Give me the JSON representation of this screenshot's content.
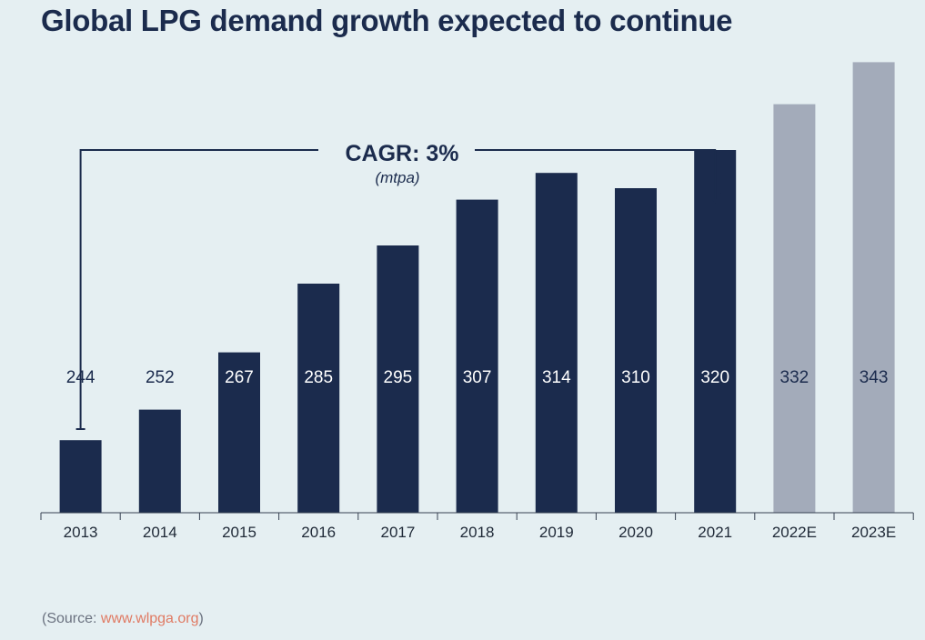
{
  "title": "Global LPG demand growth expected to continue",
  "source": {
    "prefix": "(Source: ",
    "link_text": "www.wlpga.org",
    "suffix": ")"
  },
  "chart_data": {
    "type": "bar",
    "categories": [
      "2013",
      "2014",
      "2015",
      "2016",
      "2017",
      "2018",
      "2019",
      "2020",
      "2021",
      "2022E",
      "2023E"
    ],
    "values": [
      244,
      252,
      267,
      285,
      295,
      307,
      314,
      310,
      320,
      332,
      343
    ],
    "estimated": [
      false,
      false,
      false,
      false,
      false,
      false,
      false,
      false,
      false,
      true,
      true
    ],
    "annotation": {
      "label": "CAGR: 3%",
      "unit": "(mtpa)",
      "from": "2013",
      "to": "2021"
    },
    "colors": {
      "actual": "#1b2b4d",
      "estimate": "#a3abba",
      "background": "#e5eff2"
    }
  }
}
